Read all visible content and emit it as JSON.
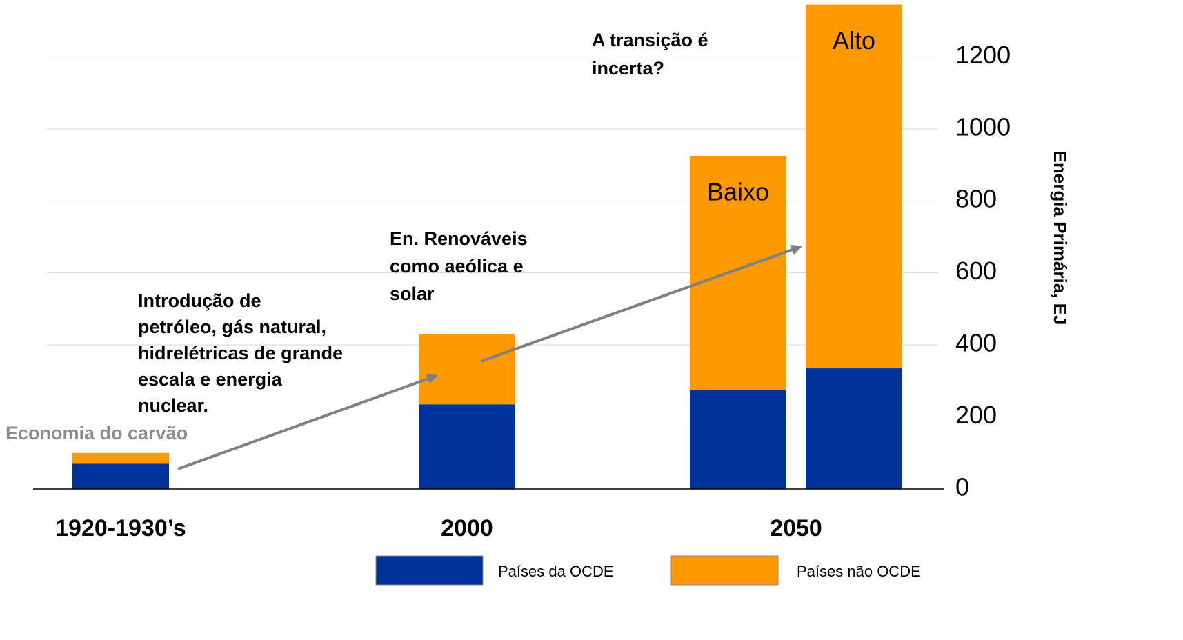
{
  "chart_data": {
    "type": "stacked_bar",
    "categories": [
      "1920-1930’s",
      "2000",
      "Baixo",
      "Alto"
    ],
    "group": "2050",
    "series": [
      {
        "name": "Países da OCDE",
        "color": "#003399",
        "values": [
          70,
          235,
          275,
          335
        ]
      },
      {
        "name": "Países não OCDE",
        "color": "#ff9900",
        "values": [
          30,
          195,
          650,
          1010
        ]
      }
    ],
    "ylim": [
      0,
      1350
    ],
    "yticks": [
      0,
      200,
      400,
      600,
      800,
      1000,
      1200
    ],
    "ylabel": "Energia Primária, EJ",
    "grid": true,
    "annotations": [
      [
        "Economia do carvão"
      ],
      [
        "Introdução de",
        "petróleo, gás natural,",
        "hidrelétricas de grande",
        "escala e energia",
        "nuclear."
      ],
      [
        "En. Renováveis",
        "como aeólica e",
        "solar"
      ],
      [
        "A transição é",
        "incerta?"
      ]
    ]
  }
}
